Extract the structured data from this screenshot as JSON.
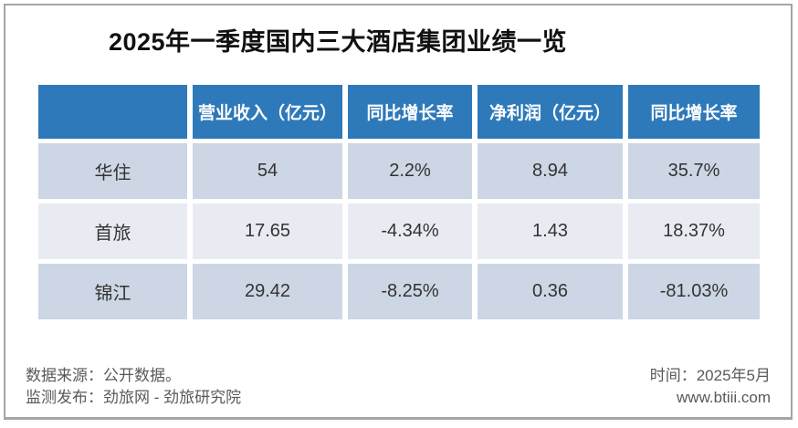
{
  "page": {
    "title": "2025年一季度国内三大酒店集团业绩一览"
  },
  "chart_data": {
    "type": "table",
    "title": "2025年一季度国内三大酒店集团业绩一览",
    "columns": [
      "",
      "营业收入（亿元）",
      "同比增长率",
      "净利润（亿元）",
      "同比增长率"
    ],
    "rows": [
      [
        "华住",
        "54",
        "2.2%",
        "8.94",
        "35.7%"
      ],
      [
        "首旅",
        "17.65",
        "-4.34%",
        "1.43",
        "18.37%"
      ],
      [
        "锦江",
        "29.42",
        "-8.25%",
        "0.36",
        "-81.03%"
      ]
    ]
  },
  "footer": {
    "source_label": "数据来源：公开数据。",
    "publisher_label": "监测发布：劲旅网 - 劲旅研究院",
    "time_label": "时间：2025年5月",
    "website": "www.btiii.com"
  },
  "colors": {
    "header_bg": "#2e79b9",
    "header_text": "#ffffff",
    "row_odd_bg": "#cdd6e4",
    "row_even_bg": "#e9ebf3",
    "body_text": "#333333",
    "footer_text": "#595959",
    "frame_border": "#a5a5a5"
  }
}
